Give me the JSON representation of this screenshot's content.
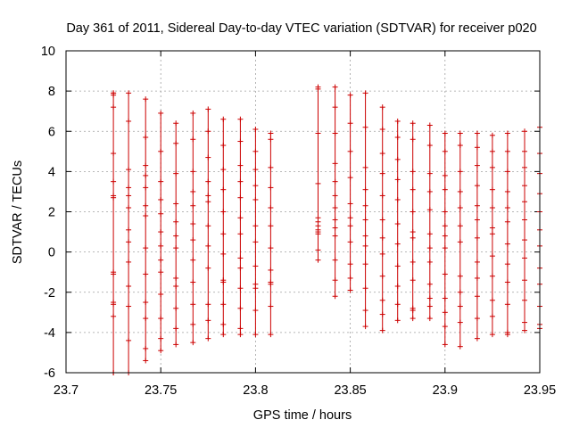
{
  "chart_data": {
    "type": "scatter",
    "title": "Day 361 of 2011, Sidereal Day-to-day VTEC variation (SDTVAR) for receiver p020",
    "xlabel": "GPS time / hours",
    "ylabel": "SDTVAR / TECUs",
    "xlim": [
      23.7,
      23.95
    ],
    "ylim": [
      -6,
      10
    ],
    "xticks": [
      "23.7",
      "23.75",
      "23.8",
      "23.85",
      "23.9",
      "23.95"
    ],
    "yticks": [
      "-6",
      "-4",
      "-2",
      "0",
      "2",
      "4",
      "6",
      "8",
      "10"
    ],
    "grid": true,
    "legend": "none",
    "marker": "plus",
    "series": [
      {
        "name": "SDTVAR",
        "color": "#cc0000",
        "x": [
          23.725,
          23.733,
          23.742,
          23.75,
          23.758,
          23.767,
          23.775,
          23.783,
          23.792,
          23.8,
          23.808,
          23.833,
          23.842,
          23.85,
          23.858,
          23.867,
          23.875,
          23.883,
          23.892,
          23.9,
          23.908,
          23.917,
          23.925,
          23.933,
          23.942,
          23.95
        ],
        "min": [
          -6.0,
          -6.0,
          -5.4,
          -4.9,
          -4.6,
          -4.5,
          -4.3,
          -4.1,
          -4.1,
          -4.1,
          -4.1,
          -0.4,
          -2.2,
          -1.9,
          -3.7,
          -3.9,
          -3.4,
          -3.3,
          -3.3,
          -4.6,
          -4.7,
          -4.3,
          -4.1,
          -4.1,
          -3.9,
          -3.8
        ],
        "max": [
          7.9,
          7.9,
          7.6,
          6.9,
          6.4,
          6.9,
          7.1,
          6.6,
          6.6,
          6.1,
          5.9,
          8.2,
          8.2,
          7.8,
          7.9,
          7.2,
          6.5,
          6.4,
          6.3,
          5.9,
          5.9,
          5.9,
          5.8,
          5.9,
          6.0,
          6.2
        ],
        "points": [
          [
            7.9,
            7.8,
            7.2,
            4.9,
            3.5,
            2.8,
            2.7,
            -1.0,
            -1.1,
            -2.5,
            -2.6,
            -3.2,
            -6.0
          ],
          [
            6.5,
            4.1,
            3.2,
            2.8,
            2.2,
            1.1,
            0.5,
            -0.5,
            -1.7,
            -2.7,
            -4.4
          ],
          [
            5.7,
            4.3,
            3.8,
            3.2,
            2.3,
            1.8,
            0.2,
            -1.1,
            -2.5,
            -3.3,
            -4.8
          ],
          [
            5.0,
            3.5,
            2.6,
            1.9,
            1.0,
            0.3,
            -0.4,
            -1.0,
            -2.1,
            -3.3,
            -4.3
          ],
          [
            5.4,
            3.9,
            2.4,
            1.5,
            0.8,
            0.2,
            -1.3,
            -1.7,
            -2.8,
            -3.8
          ],
          [
            5.6,
            4.0,
            3.0,
            2.3,
            1.4,
            0.6,
            -0.4,
            -1.5,
            -2.6,
            -3.6
          ],
          [
            6.0,
            4.7,
            3.5,
            2.8,
            2.5,
            1.3,
            0.3,
            -0.8,
            -2.6,
            -3.4
          ],
          [
            5.3,
            4.1,
            3.1,
            2.0,
            0.9,
            -0.1,
            -1.4,
            -1.5,
            -2.6,
            -3.6
          ],
          [
            5.5,
            4.3,
            3.5,
            2.7,
            1.7,
            0.9,
            -0.3,
            -0.8,
            -1.8,
            -2.8,
            -3.8
          ],
          [
            5.0,
            4.1,
            3.3,
            2.6,
            1.3,
            0.5,
            -0.7,
            -1.6,
            -1.8,
            -2.9
          ],
          [
            5.6,
            4.2,
            3.2,
            2.2,
            1.3,
            0.2,
            -0.9,
            -1.5,
            -1.6,
            -2.7
          ],
          [
            8.1,
            5.9,
            3.4,
            1.7,
            1.5,
            1.3,
            1.1,
            1.0,
            0.9,
            0.1
          ],
          [
            7.2,
            5.9,
            4.4,
            3.5,
            2.8,
            2.2,
            1.6,
            1.2,
            0.8,
            -0.4,
            -1.4
          ],
          [
            6.4,
            5.0,
            3.7,
            2.4,
            1.7,
            1.3,
            0.5,
            -0.6,
            -1.3
          ],
          [
            6.2,
            4.2,
            3.1,
            2.3,
            1.6,
            0.8,
            0.3,
            -0.6,
            -1.8,
            -2.9
          ],
          [
            6.1,
            4.9,
            3.9,
            2.8,
            1.6,
            0.7,
            -0.1,
            -1.2,
            -2.4,
            -3.1
          ],
          [
            5.7,
            4.6,
            3.6,
            2.6,
            1.4,
            0.4,
            -0.7,
            -1.7,
            -2.6
          ],
          [
            5.6,
            4.0,
            3.1,
            2.0,
            1.0,
            0.7,
            -0.5,
            -1.4,
            -2.8,
            -2.9
          ],
          [
            5.3,
            3.9,
            3.0,
            2.1,
            0.9,
            0.2,
            -0.5,
            -1.6,
            -2.3,
            -2.7
          ],
          [
            5.0,
            3.8,
            3.1,
            2.0,
            1.3,
            0.8,
            0.2,
            -1.1,
            -2.3,
            -3.0,
            -3.7
          ],
          [
            5.3,
            4.0,
            3.0,
            2.2,
            1.3,
            0.5,
            -1.2,
            -2.0,
            -2.7,
            -3.5
          ],
          [
            5.2,
            4.3,
            3.3,
            2.3,
            1.6,
            0.7,
            -0.5,
            -1.3,
            -2.2,
            -3.3
          ],
          [
            5.0,
            4.2,
            3.1,
            2.2,
            1.2,
            0.9,
            -0.2,
            -1.2,
            -2.4,
            -3.2
          ],
          [
            5.0,
            4.0,
            3.0,
            2.2,
            1.5,
            0.4,
            -0.6,
            -1.5,
            -2.6,
            -4.0
          ],
          [
            5.0,
            4.2,
            3.3,
            2.5,
            1.6,
            0.6,
            -0.3,
            -1.4,
            -2.4,
            -3.5
          ],
          [
            4.9,
            3.9,
            2.9,
            2.0,
            1.1,
            0.3,
            -0.8,
            -1.6,
            -2.7,
            -3.6
          ]
        ]
      }
    ]
  }
}
